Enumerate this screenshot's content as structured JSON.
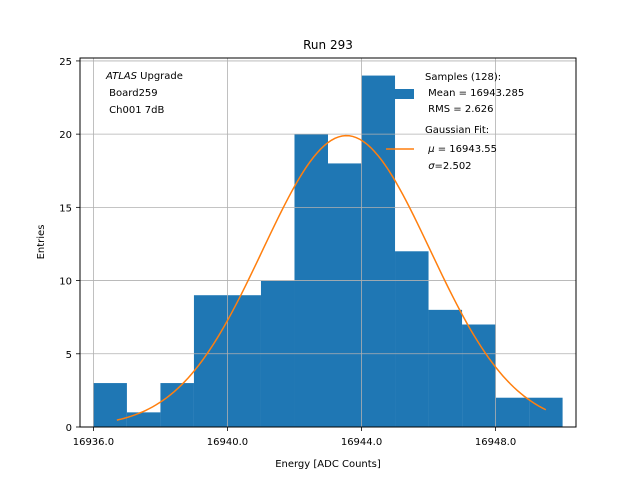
{
  "chart_data": {
    "type": "bar",
    "title": "Run 293",
    "xlabel": "Energy [ADC Counts]",
    "ylabel": "Entries",
    "xlim": [
      16935.6,
      16950.4
    ],
    "ylim": [
      0,
      25.2
    ],
    "grid": true,
    "xticks": [
      16936.0,
      16940.0,
      16944.0,
      16948.0
    ],
    "xtick_labels": [
      "16936.0",
      "16940.0",
      "16944.0",
      "16948.0"
    ],
    "yticks": [
      0,
      5,
      10,
      15,
      20,
      25
    ],
    "ytick_labels": [
      "0",
      "5",
      "10",
      "15",
      "20",
      "25"
    ],
    "bins": [
      {
        "x0": 16936.0,
        "x1": 16937.0,
        "count": 3
      },
      {
        "x0": 16937.0,
        "x1": 16938.0,
        "count": 1
      },
      {
        "x0": 16938.0,
        "x1": 16939.0,
        "count": 3
      },
      {
        "x0": 16939.0,
        "x1": 16940.0,
        "count": 9
      },
      {
        "x0": 16940.0,
        "x1": 16941.0,
        "count": 9
      },
      {
        "x0": 16941.0,
        "x1": 16942.0,
        "count": 10
      },
      {
        "x0": 16942.0,
        "x1": 16943.0,
        "count": 20
      },
      {
        "x0": 16943.0,
        "x1": 16944.0,
        "count": 18
      },
      {
        "x0": 16944.0,
        "x1": 16945.0,
        "count": 24
      },
      {
        "x0": 16945.0,
        "x1": 16946.0,
        "count": 12
      },
      {
        "x0": 16946.0,
        "x1": 16947.0,
        "count": 8
      },
      {
        "x0": 16947.0,
        "x1": 16948.0,
        "count": 7
      },
      {
        "x0": 16948.0,
        "x1": 16949.0,
        "count": 2
      },
      {
        "x0": 16949.0,
        "x1": 16950.0,
        "count": 2
      }
    ],
    "fit": {
      "type": "gaussian",
      "mu": 16943.55,
      "sigma": 2.502,
      "amplitude": 19.9,
      "x_range": [
        16936.7,
        16949.5
      ]
    },
    "annotation": {
      "italic": "ATLAS",
      "line1_rest": " Upgrade",
      "line2": " Board259",
      "line3": " Ch001 7dB"
    },
    "legend": {
      "placement": "top-right",
      "samples_line1": "Samples (128):",
      "samples_line2": " Mean = 16943.285",
      "samples_line3": " RMS = 2.626",
      "fit_line1": "Gaussian Fit:",
      "fit_mu_symbol": "μ",
      "fit_mu_rest": " = 16943.55",
      "fit_sigma_symbol": "σ",
      "fit_sigma_rest": "=2.502"
    },
    "colors": {
      "bars": "#1f77b4",
      "fit": "#ff7f0e",
      "grid": "#b0b0b0"
    }
  }
}
